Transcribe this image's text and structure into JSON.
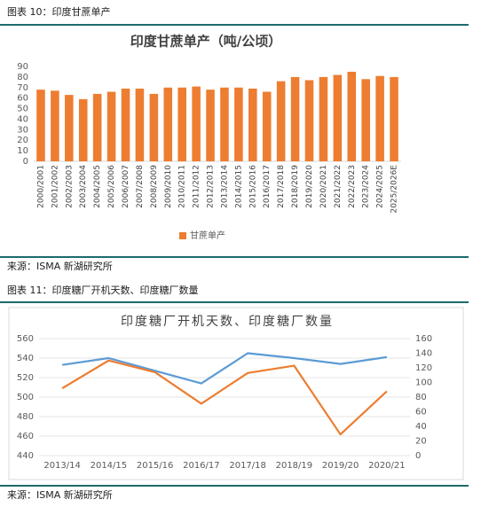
{
  "figures": [
    {
      "caption": "图表 10：印度甘蔗单产",
      "source": "来源：ISMA 新湖研究所"
    },
    {
      "caption": "图表 11：印度糖厂开机天数、印度糖厂数量",
      "source": "来源：ISMA 新湖研究所"
    }
  ],
  "chart_data": [
    {
      "type": "bar",
      "title": "印度甘蔗单产（吨/公顷）",
      "categories": [
        "2000/2001",
        "2001/2002",
        "2002/2003",
        "2003/2004",
        "2004/2005",
        "2005/2006",
        "2006/2007",
        "2007/2008",
        "2008/2009",
        "2009/2010",
        "2010/2011",
        "2011/2012",
        "2012/2013",
        "2013/2014",
        "2014/2015",
        "2015/2016",
        "2016/2017",
        "2017/2018",
        "2018/2019",
        "2019/2020",
        "2020/2021",
        "2021/2022",
        "2022/2023",
        "2023/2024",
        "2024/2025",
        "2025/2026E"
      ],
      "series": [
        {
          "name": "甘蔗单产",
          "color": "#ed7d31",
          "values": [
            68,
            67,
            63,
            59,
            64,
            66,
            69,
            69,
            64,
            70,
            70,
            71,
            68,
            70,
            70,
            69,
            66,
            76,
            80,
            77,
            80,
            82,
            85,
            78,
            81,
            80
          ]
        }
      ],
      "ylim": [
        0,
        90
      ],
      "yticks": [
        0,
        10,
        20,
        30,
        40,
        50,
        60,
        70,
        80,
        90
      ],
      "grid": false,
      "legend": "bottom"
    },
    {
      "type": "line",
      "title": "印度糖厂开机天数、印度糖厂数量",
      "categories": [
        "2013/14",
        "2014/15",
        "2015/16",
        "2016/17",
        "2017/18",
        "2018/19",
        "2019/20",
        "2020/21"
      ],
      "series": [
        {
          "color": "#5b9bd5",
          "values": [
            533,
            540,
            527,
            514,
            545,
            540,
            534,
            541
          ]
        },
        {
          "color": "#ed7d31",
          "axis": "y2",
          "values": [
            92,
            130,
            114,
            71,
            113,
            123,
            29,
            88
          ]
        }
      ],
      "ylim": [
        440,
        560
      ],
      "yticks": [
        440,
        460,
        480,
        500,
        520,
        540,
        560
      ],
      "y2lim": [
        0,
        160
      ],
      "y2ticks": [
        0,
        20,
        40,
        60,
        80,
        100,
        120,
        140,
        160
      ],
      "grid": true
    }
  ]
}
